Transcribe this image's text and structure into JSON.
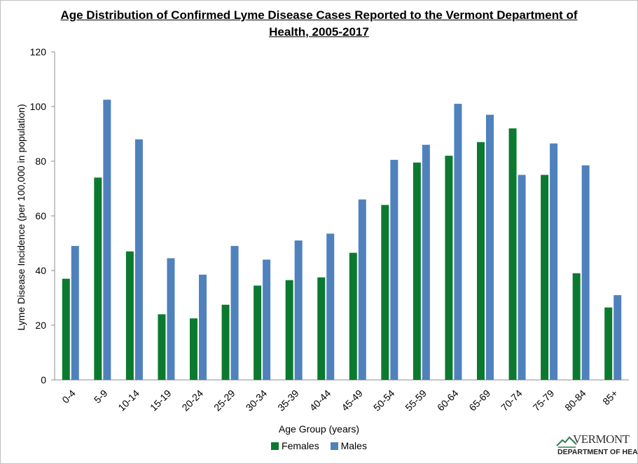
{
  "chart_data": {
    "type": "bar",
    "title": "Age Distribution of Confirmed Lyme Disease Cases Reported to the Vermont Department of Health, 2005-2017",
    "title_line1": "Age Distribution of Confirmed Lyme Disease Cases Reported to the Vermont Department of",
    "title_line2": "Health, 2005-2017",
    "xlabel": "Age Group  (years)",
    "ylabel": "Lyme Disease Incidence (per 100,000 in population)",
    "ylim": [
      0,
      120
    ],
    "yticks": [
      0,
      20,
      40,
      60,
      80,
      100,
      120
    ],
    "grid": false,
    "legend_position": "bottom",
    "categories": [
      "0-4",
      "5-9",
      "10-14",
      "15-19",
      "20-24",
      "25-29",
      "30-34",
      "35-39",
      "40-44",
      "45-49",
      "50-54",
      "55-59",
      "60-64",
      "65-69",
      "70-74",
      "75-79",
      "80-84",
      "85+"
    ],
    "series": [
      {
        "name": "Females",
        "color": "#0b7a2f",
        "values": [
          37,
          74,
          47,
          24,
          22.5,
          27.5,
          34.5,
          36.5,
          37.5,
          46.5,
          64,
          79.5,
          82,
          87,
          92,
          75,
          39,
          26.5
        ]
      },
      {
        "name": "Males",
        "color": "#4f81bd",
        "values": [
          49,
          102.5,
          88,
          44.5,
          38.5,
          49,
          44,
          51,
          53.5,
          66,
          80.5,
          86,
          101,
          97,
          75,
          86.5,
          78.5,
          31
        ]
      }
    ]
  },
  "logo": {
    "name": "VERMONT",
    "subtitle": "DEPARTMENT OF HEALTH"
  }
}
